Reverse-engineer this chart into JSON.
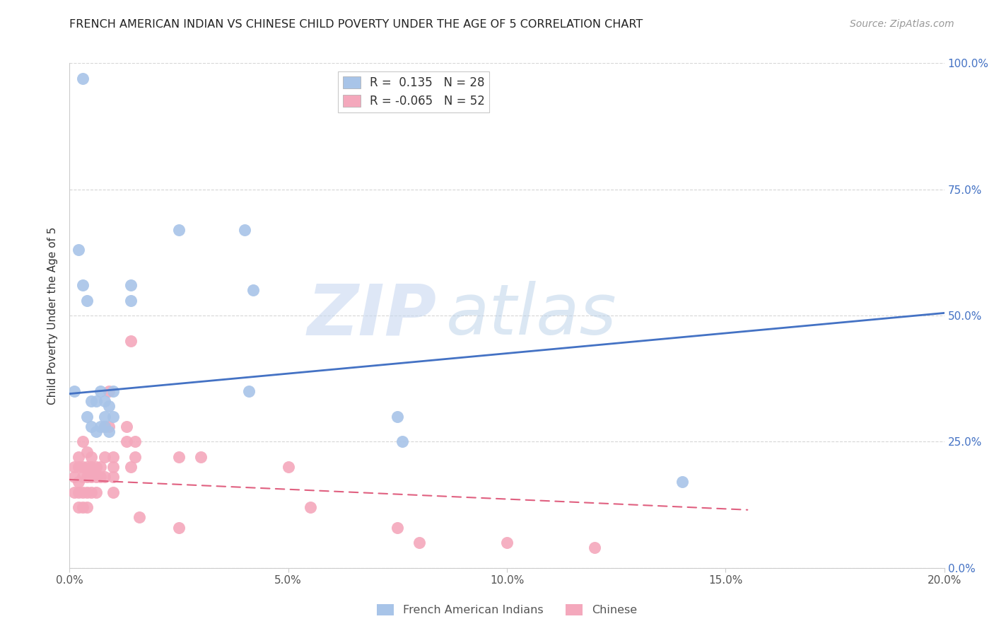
{
  "title": "FRENCH AMERICAN INDIAN VS CHINESE CHILD POVERTY UNDER THE AGE OF 5 CORRELATION CHART",
  "source": "Source: ZipAtlas.com",
  "xlabel_ticks": [
    "0.0%",
    "",
    "5.0%",
    "",
    "10.0%",
    "",
    "15.0%",
    "",
    "20.0%"
  ],
  "xlabel_tick_vals": [
    0.0,
    0.025,
    0.05,
    0.075,
    0.1,
    0.125,
    0.15,
    0.175,
    0.2
  ],
  "ylabel_ticks": [
    "100.0%",
    "75.0%",
    "50.0%",
    "25.0%",
    "0.0%"
  ],
  "ylabel_tick_vals": [
    1.0,
    0.75,
    0.5,
    0.25,
    0.0
  ],
  "ylabel": "Child Poverty Under the Age of 5",
  "xlim": [
    0.0,
    0.2
  ],
  "ylim": [
    0.0,
    1.0
  ],
  "legend_r_blue": "R =  0.135",
  "legend_n_blue": "N = 28",
  "legend_r_pink": "R = -0.065",
  "legend_n_pink": "N = 52",
  "legend_label_blue": "French American Indians",
  "legend_label_pink": "Chinese",
  "blue_color": "#a8c4e8",
  "pink_color": "#f4a8bc",
  "line_blue": "#4472c4",
  "line_pink": "#e06080",
  "watermark_zip": "ZIP",
  "watermark_atlas": "atlas",
  "blue_points_x": [
    0.003,
    0.002,
    0.003,
    0.004,
    0.004,
    0.005,
    0.005,
    0.006,
    0.006,
    0.007,
    0.007,
    0.008,
    0.008,
    0.008,
    0.009,
    0.009,
    0.01,
    0.014,
    0.014,
    0.04,
    0.041,
    0.042,
    0.075,
    0.076,
    0.14,
    0.001,
    0.025,
    0.01
  ],
  "blue_points_y": [
    0.97,
    0.63,
    0.56,
    0.53,
    0.3,
    0.33,
    0.28,
    0.33,
    0.27,
    0.35,
    0.28,
    0.33,
    0.3,
    0.28,
    0.32,
    0.27,
    0.35,
    0.56,
    0.53,
    0.67,
    0.35,
    0.55,
    0.3,
    0.25,
    0.17,
    0.35,
    0.67,
    0.3
  ],
  "pink_points_x": [
    0.001,
    0.001,
    0.001,
    0.002,
    0.002,
    0.002,
    0.002,
    0.002,
    0.003,
    0.003,
    0.003,
    0.003,
    0.003,
    0.004,
    0.004,
    0.004,
    0.004,
    0.004,
    0.005,
    0.005,
    0.005,
    0.005,
    0.006,
    0.006,
    0.006,
    0.007,
    0.007,
    0.008,
    0.008,
    0.008,
    0.009,
    0.009,
    0.01,
    0.01,
    0.01,
    0.01,
    0.013,
    0.013,
    0.014,
    0.014,
    0.015,
    0.015,
    0.016,
    0.025,
    0.025,
    0.03,
    0.05,
    0.055,
    0.075,
    0.08,
    0.1,
    0.12
  ],
  "pink_points_y": [
    0.2,
    0.18,
    0.15,
    0.22,
    0.2,
    0.17,
    0.15,
    0.12,
    0.25,
    0.2,
    0.18,
    0.15,
    0.12,
    0.23,
    0.2,
    0.18,
    0.15,
    0.12,
    0.22,
    0.2,
    0.18,
    0.15,
    0.2,
    0.18,
    0.15,
    0.2,
    0.18,
    0.28,
    0.22,
    0.18,
    0.35,
    0.28,
    0.22,
    0.2,
    0.18,
    0.15,
    0.28,
    0.25,
    0.45,
    0.2,
    0.25,
    0.22,
    0.1,
    0.22,
    0.08,
    0.22,
    0.2,
    0.12,
    0.08,
    0.05,
    0.05,
    0.04
  ],
  "blue_line_x": [
    0.0,
    0.2
  ],
  "blue_line_y": [
    0.345,
    0.505
  ],
  "pink_line_x": [
    0.0,
    0.155
  ],
  "pink_line_y": [
    0.175,
    0.115
  ]
}
